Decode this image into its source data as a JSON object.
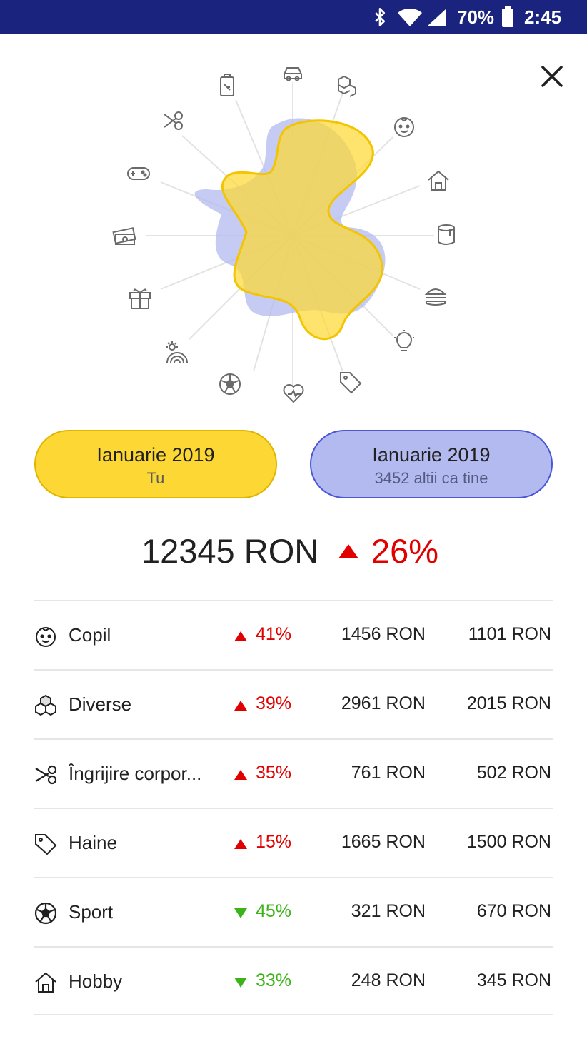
{
  "status_bar": {
    "battery_percent": "70%",
    "time": "2:45"
  },
  "compare_buttons": {
    "you": {
      "period": "Ianuarie 2019",
      "subtitle": "Tu"
    },
    "others": {
      "period": "Ianuarie 2019",
      "subtitle": "3452 altii ca tine"
    }
  },
  "summary": {
    "amount": "12345 RON",
    "change": "26%",
    "trend": "up"
  },
  "categories": [
    {
      "icon": "child-face-icon",
      "label": "Copil",
      "trend": "up",
      "change": "41%",
      "you": "1456 RON",
      "others": "1101 RON"
    },
    {
      "icon": "boxes-icon",
      "label": "Diverse",
      "trend": "up",
      "change": "39%",
      "you": "2961 RON",
      "others": "2015 RON"
    },
    {
      "icon": "scissors-icon",
      "label": "Îngrijire corpor...",
      "trend": "up",
      "change": "35%",
      "you": "761 RON",
      "others": "502 RON"
    },
    {
      "icon": "tag-icon",
      "label": "Haine",
      "trend": "up",
      "change": "15%",
      "you": "1665 RON",
      "others": "1500 RON"
    },
    {
      "icon": "soccer-ball-icon",
      "label": "Sport",
      "trend": "down",
      "change": "45%",
      "you": "321 RON",
      "others": "670 RON"
    },
    {
      "icon": "house-icon",
      "label": "Hobby",
      "trend": "down",
      "change": "33%",
      "you": "248 RON",
      "others": "345 RON"
    }
  ],
  "radar_icons": [
    "car-icon",
    "boxes-icon",
    "child-face-icon",
    "house-icon",
    "paint-bucket-icon",
    "burger-icon",
    "lightbulb-icon",
    "tag-icon",
    "heart-pulse-icon",
    "soccer-ball-icon",
    "rainbow-icon",
    "gift-icon",
    "money-icon",
    "gamepad-icon",
    "scissors-icon",
    "luggage-icon"
  ],
  "colors": {
    "you": "#fdd835",
    "others": "#b3baf0",
    "up": "#e00000",
    "down": "#3cb31a",
    "header": "#1a237e"
  }
}
